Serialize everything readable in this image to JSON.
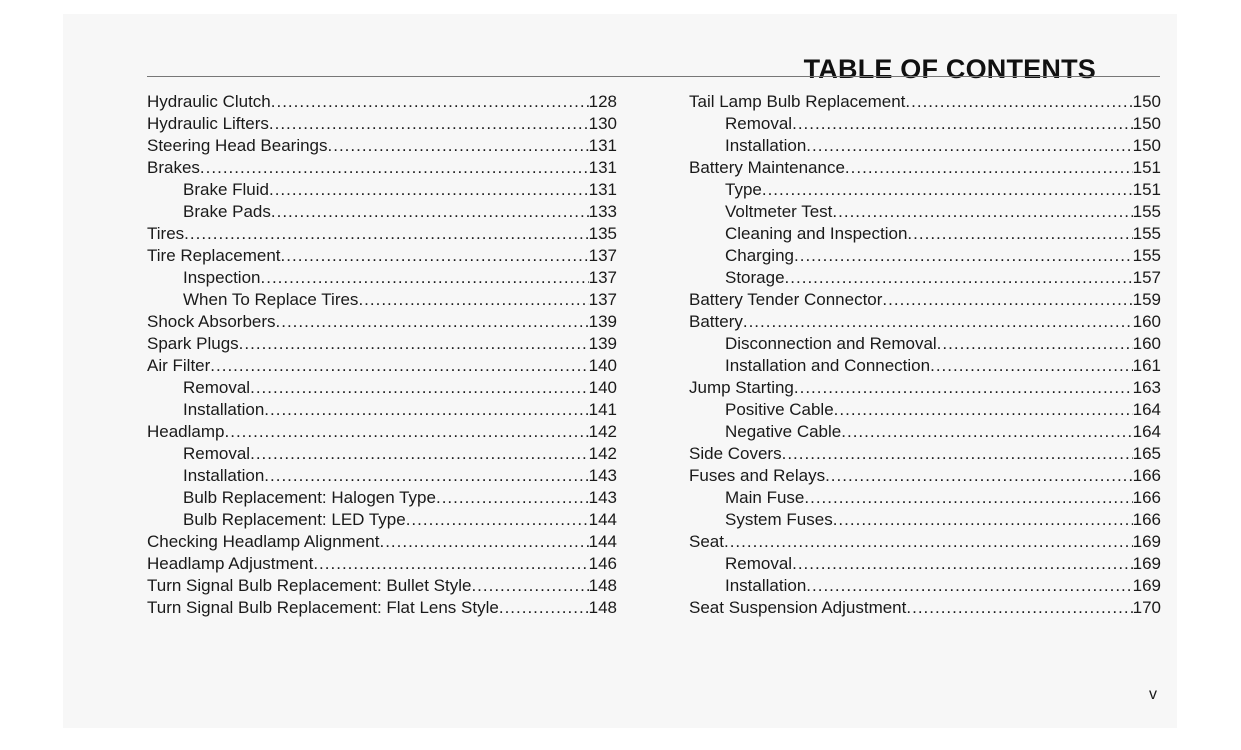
{
  "title": "TABLE OF CONTENTS",
  "page_number": "v",
  "left_entries": [
    {
      "label": "Hydraulic Clutch",
      "page": "128",
      "level": 0
    },
    {
      "label": "Hydraulic Lifters",
      "page": "130",
      "level": 0
    },
    {
      "label": "Steering Head Bearings",
      "page": "131",
      "level": 0
    },
    {
      "label": "Brakes",
      "page": "131",
      "level": 0
    },
    {
      "label": "Brake Fluid",
      "page": "131",
      "level": 1
    },
    {
      "label": "Brake Pads",
      "page": "133",
      "level": 1
    },
    {
      "label": "Tires",
      "page": "135",
      "level": 0
    },
    {
      "label": "Tire Replacement",
      "page": "137",
      "level": 0
    },
    {
      "label": "Inspection",
      "page": "137",
      "level": 1
    },
    {
      "label": "When To Replace Tires",
      "page": "137",
      "level": 1
    },
    {
      "label": "Shock Absorbers",
      "page": "139",
      "level": 0
    },
    {
      "label": "Spark Plugs",
      "page": "139",
      "level": 0
    },
    {
      "label": "Air Filter",
      "page": "140",
      "level": 0
    },
    {
      "label": "Removal",
      "page": "140",
      "level": 1
    },
    {
      "label": "Installation",
      "page": "141",
      "level": 1
    },
    {
      "label": "Headlamp",
      "page": "142",
      "level": 0
    },
    {
      "label": "Removal",
      "page": "142",
      "level": 1
    },
    {
      "label": "Installation",
      "page": "143",
      "level": 1
    },
    {
      "label": "Bulb Replacement: Halogen Type",
      "page": "143",
      "level": 1
    },
    {
      "label": "Bulb Replacement: LED Type",
      "page": "144",
      "level": 1
    },
    {
      "label": "Checking Headlamp Alignment",
      "page": "144",
      "level": 0
    },
    {
      "label": "Headlamp Adjustment",
      "page": "146",
      "level": 0
    },
    {
      "label": "Turn Signal Bulb Replacement: Bullet Style",
      "page": "148",
      "level": 0
    },
    {
      "label": "Turn Signal Bulb Replacement: Flat Lens Style",
      "page": "148",
      "level": 0
    }
  ],
  "right_entries": [
    {
      "label": "Tail Lamp Bulb Replacement",
      "page": "150",
      "level": 0
    },
    {
      "label": "Removal",
      "page": "150",
      "level": 1
    },
    {
      "label": "Installation",
      "page": "150",
      "level": 1
    },
    {
      "label": "Battery Maintenance",
      "page": "151",
      "level": 0
    },
    {
      "label": "Type",
      "page": "151",
      "level": 1
    },
    {
      "label": "Voltmeter Test",
      "page": "155",
      "level": 1
    },
    {
      "label": "Cleaning and Inspection",
      "page": "155",
      "level": 1
    },
    {
      "label": "Charging",
      "page": "155",
      "level": 1
    },
    {
      "label": "Storage",
      "page": "157",
      "level": 1
    },
    {
      "label": "Battery Tender Connector",
      "page": "159",
      "level": 0
    },
    {
      "label": "Battery",
      "page": "160",
      "level": 0
    },
    {
      "label": "Disconnection and Removal",
      "page": "160",
      "level": 1
    },
    {
      "label": "Installation and Connection",
      "page": "161",
      "level": 1
    },
    {
      "label": "Jump Starting",
      "page": "163",
      "level": 0
    },
    {
      "label": "Positive Cable",
      "page": "164",
      "level": 1
    },
    {
      "label": "Negative Cable",
      "page": "164",
      "level": 1
    },
    {
      "label": "Side Covers",
      "page": "165",
      "level": 0
    },
    {
      "label": "Fuses and Relays",
      "page": "166",
      "level": 0
    },
    {
      "label": "Main Fuse",
      "page": "166",
      "level": 1
    },
    {
      "label": "System Fuses",
      "page": "166",
      "level": 1
    },
    {
      "label": "Seat",
      "page": "169",
      "level": 0
    },
    {
      "label": "Removal",
      "page": "169",
      "level": 1
    },
    {
      "label": "Installation",
      "page": "169",
      "level": 1
    },
    {
      "label": "Seat Suspension Adjustment",
      "page": "170",
      "level": 0
    }
  ]
}
